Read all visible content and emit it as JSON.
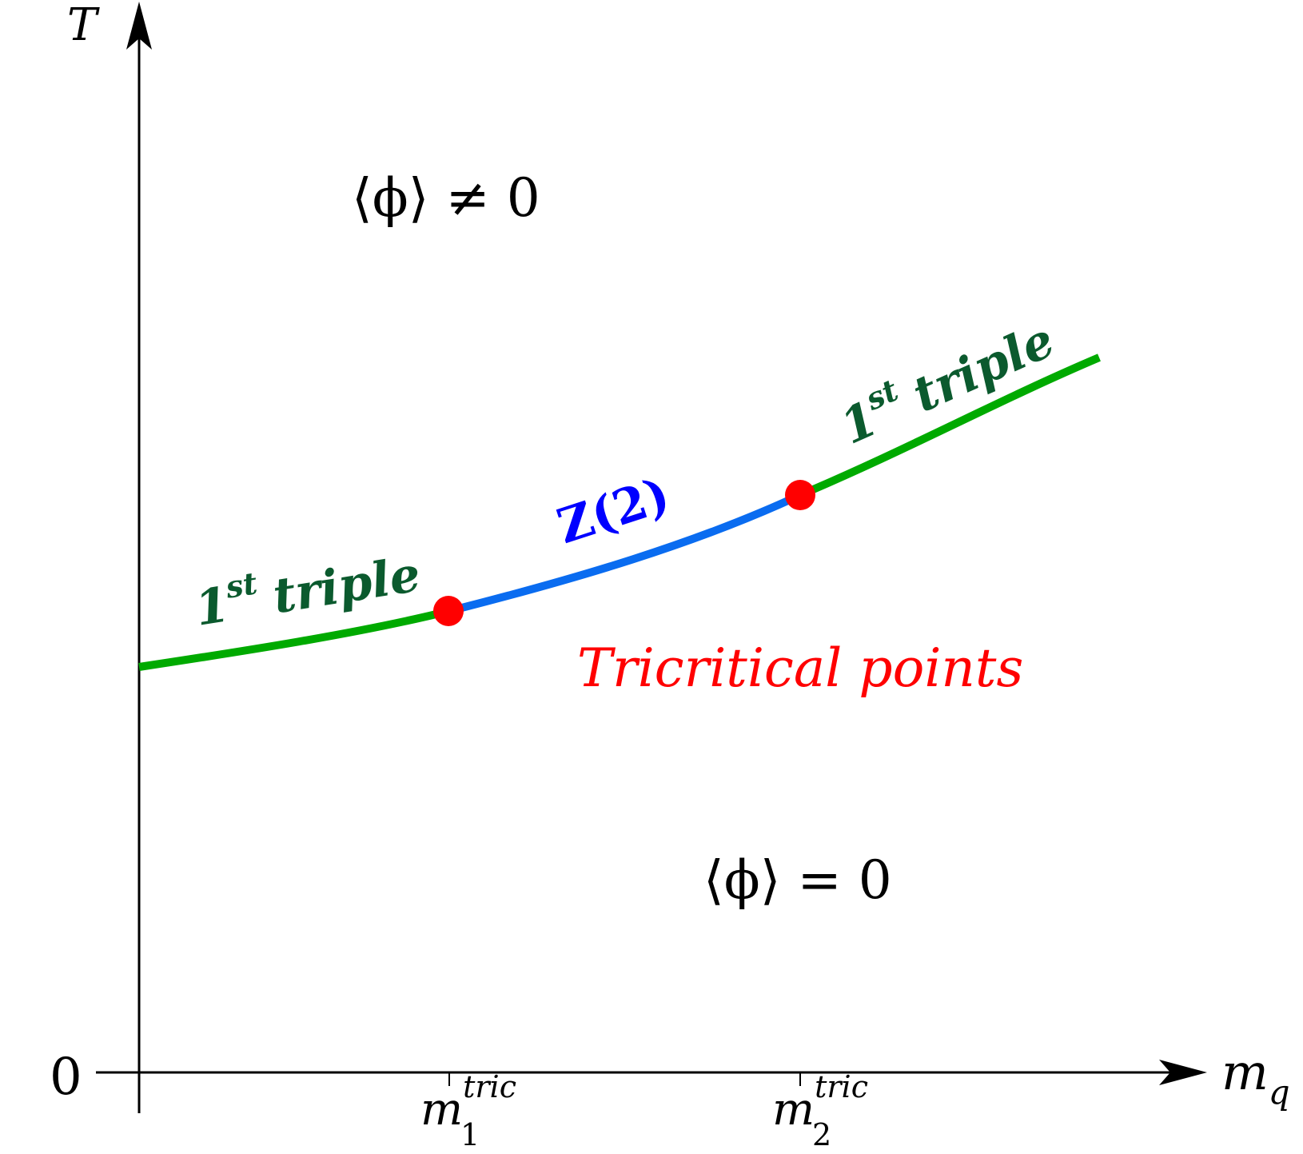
{
  "axes": {
    "y_label": "T",
    "x_label_base": "m",
    "x_label_sub": "q",
    "origin_label": "0",
    "ticks": [
      {
        "base": "m",
        "sup": "tric",
        "sub": "1"
      },
      {
        "base": "m",
        "sup": "tric",
        "sub": "2"
      }
    ]
  },
  "regions": {
    "upper": "⟨ϕ⟩ ≠ 0",
    "lower": "⟨ϕ⟩ = 0"
  },
  "segments": {
    "left": {
      "num": "1",
      "sup": "st",
      "text": "triple",
      "color": "#00aa00"
    },
    "middle": {
      "text": "Z(2)",
      "color": "#0a6cf0"
    },
    "right": {
      "num": "1",
      "sup": "st",
      "text": "triple",
      "color": "#00aa00"
    }
  },
  "points": {
    "label": "Tricritical points",
    "color": "#ff0000"
  },
  "colors": {
    "segment_label": "#0b5a2e",
    "z2_label": "#0000ff"
  }
}
